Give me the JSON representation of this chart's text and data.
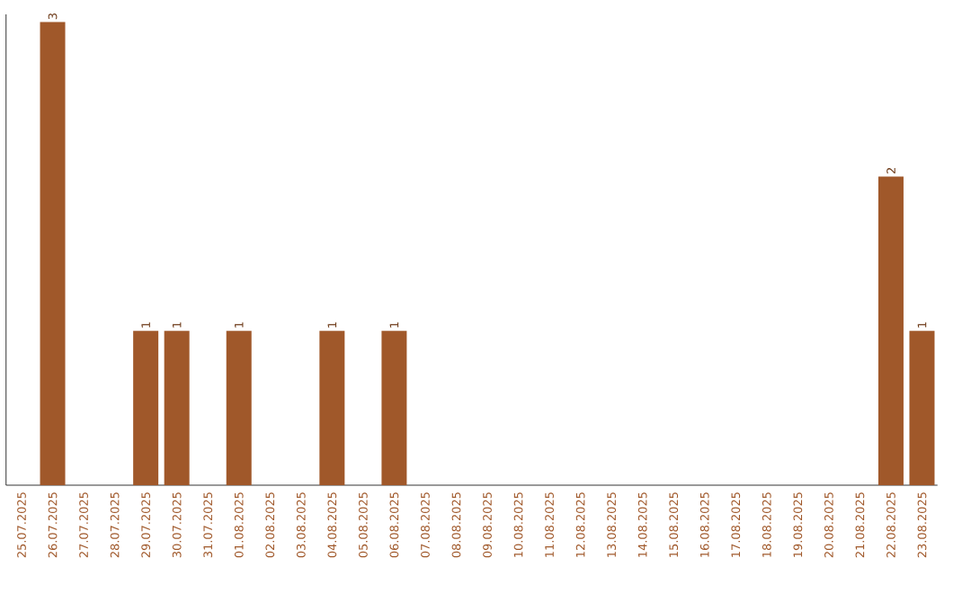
{
  "chart_data": {
    "type": "bar",
    "categories": [
      "25.07.2025",
      "26.07.2025",
      "27.07.2025",
      "28.07.2025",
      "29.07.2025",
      "30.07.2025",
      "31.07.2025",
      "01.08.2025",
      "02.08.2025",
      "03.08.2025",
      "04.08.2025",
      "05.08.2025",
      "06.08.2025",
      "07.08.2025",
      "08.08.2025",
      "09.08.2025",
      "10.08.2025",
      "11.08.2025",
      "12.08.2025",
      "13.08.2025",
      "14.08.2025",
      "15.08.2025",
      "16.08.2025",
      "17.08.2025",
      "18.08.2025",
      "19.08.2025",
      "20.08.2025",
      "21.08.2025",
      "22.08.2025",
      "23.08.2025"
    ],
    "values": [
      0,
      3,
      0,
      0,
      1,
      1,
      0,
      1,
      0,
      0,
      1,
      0,
      1,
      0,
      0,
      0,
      0,
      0,
      0,
      0,
      0,
      0,
      0,
      0,
      0,
      0,
      0,
      0,
      2,
      1
    ],
    "value_labels": [
      null,
      "3",
      null,
      null,
      "1",
      "1",
      null,
      "1",
      null,
      null,
      "1",
      null,
      "1",
      null,
      null,
      null,
      null,
      null,
      null,
      null,
      null,
      null,
      null,
      null,
      null,
      null,
      null,
      null,
      "2",
      "1"
    ],
    "color": "#a0582a",
    "ylim": [
      0,
      3.05
    ],
    "tick_labels": "x"
  }
}
